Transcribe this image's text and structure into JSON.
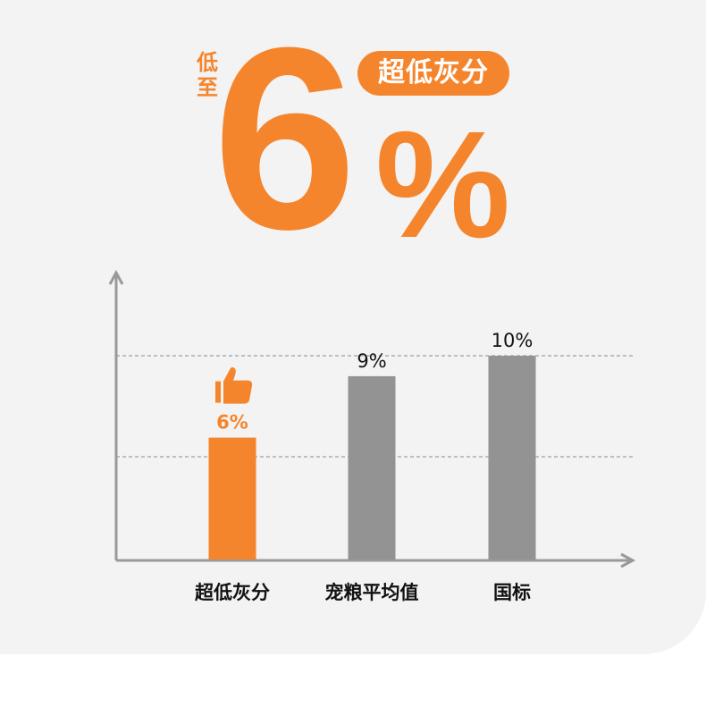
{
  "headline": {
    "prefix": "低至",
    "value": "6",
    "unit": "%",
    "badge": "超低灰分"
  },
  "colors": {
    "accent": "#f5852c",
    "bar_gray": "#939393",
    "axis": "#999999"
  },
  "chart_data": {
    "type": "bar",
    "categories": [
      "超低灰分",
      "宠粮平均值",
      "国标"
    ],
    "values": [
      6,
      9,
      10
    ],
    "data_labels": [
      "6%",
      "9%",
      "10%"
    ],
    "highlight": {
      "category": "超低灰分",
      "icon": "thumbs-up-icon",
      "color": "#f5852c"
    },
    "bar_colors": [
      "#f5852c",
      "#939393",
      "#939393"
    ],
    "grid": "dashed horizontal",
    "ylim": [
      0,
      10
    ],
    "xlabel": "",
    "ylabel": ""
  }
}
